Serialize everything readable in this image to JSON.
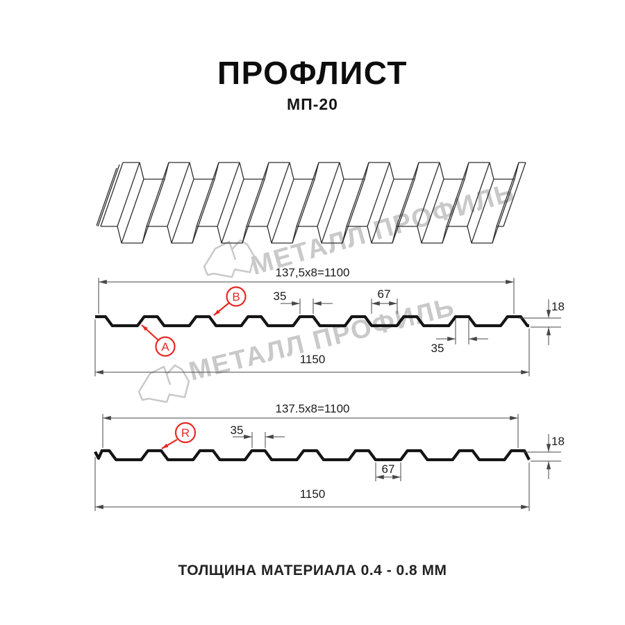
{
  "header": {
    "title": "ПРОФЛИСТ",
    "subtitle": "МП-20"
  },
  "watermark": {
    "text": "МЕТАЛЛ ПРОФИЛЬ",
    "color": "#c9c9c9"
  },
  "footer": {
    "text": "ТОЛЩИНА МАТЕРИАЛА 0.4 - 0.8 ММ"
  },
  "colors": {
    "profile_line": "#141414",
    "dimension_line": "#474747",
    "accent_red": "#e32b25",
    "watermark_gray": "#c9c9c9",
    "background": "#ffffff"
  },
  "profile": {
    "name": "МП-20",
    "height_mm": 18,
    "crest_top_mm": 35,
    "valley_bottom_mm": 67,
    "pitch_mm": 137.5,
    "pitch_count": 8,
    "cover_width_mm": 1100,
    "overall_width_mm": 1150,
    "thickness_range_mm": "0.4 - 0.8"
  },
  "sections": [
    {
      "name": "cross-section A/B",
      "cover_dim": "137,5x8=1100",
      "crest_top_dim": "35",
      "valley_dim": "67",
      "crest_bottom_dim": "35",
      "height_dim": "18",
      "overall_dim": "1150",
      "callouts": [
        {
          "label": "A"
        },
        {
          "label": "B"
        }
      ]
    },
    {
      "name": "cross-section R",
      "cover_dim": "137.5x8=1100",
      "crest_top_dim": "35",
      "valley_dim": "67",
      "height_dim": "18",
      "overall_dim": "1150",
      "callouts": [
        {
          "label": "R"
        }
      ]
    }
  ]
}
